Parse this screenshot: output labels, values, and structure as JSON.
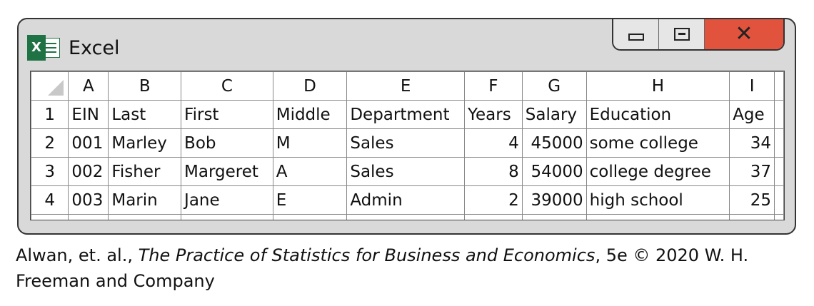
{
  "window": {
    "app_title": "Excel",
    "logo_letter": "X",
    "controls": {
      "minimize": "minimize",
      "maximize": "maximize",
      "close": "close"
    }
  },
  "sheet": {
    "column_headers": [
      "A",
      "B",
      "C",
      "D",
      "E",
      "F",
      "G",
      "H",
      "I"
    ],
    "row_numbers": [
      "1",
      "2",
      "3",
      "4"
    ],
    "rows": [
      [
        "EIN",
        "Last",
        "First",
        "Middle",
        "Department",
        "Years",
        "Salary",
        "Education",
        "Age"
      ],
      [
        "001",
        "Marley",
        "Bob",
        "M",
        "Sales",
        "4",
        "45000",
        "some college",
        "34"
      ],
      [
        "002",
        "Fisher",
        "Margeret",
        "A",
        "Sales",
        "8",
        "54000",
        "college degree",
        "37"
      ],
      [
        "003",
        "Marin",
        "Jane",
        "E",
        "Admin",
        "2",
        "39000",
        "high school",
        "25"
      ]
    ]
  },
  "caption": {
    "prefix": "Alwan, et. al., ",
    "book_title": "The Practice of Statistics for Business and Economics",
    "suffix": ", 5e © 2020 W. H. Freeman and Company"
  },
  "colors": {
    "excel_green": "#1f7244",
    "close_red": "#e2533e",
    "window_gray": "#d9d9d9"
  }
}
